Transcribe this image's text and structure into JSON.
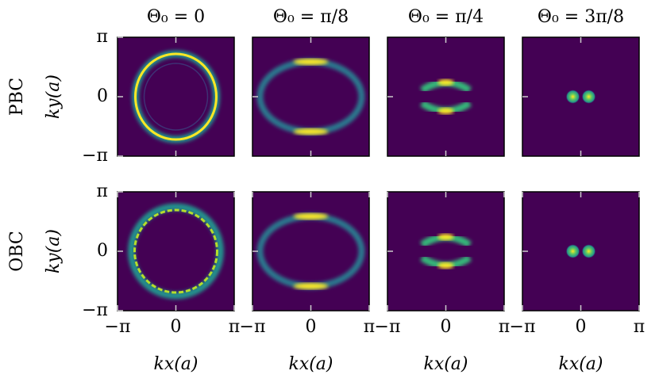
{
  "chart_data": [
    {
      "type": "heatmap",
      "title": "Θ₀ = 0",
      "row_label": "PBC",
      "ylabel": "ky(a)",
      "xlim": [
        -3.1416,
        3.1416
      ],
      "ylim": [
        -3.1416,
        3.1416
      ],
      "xticks": [
        0
      ],
      "yticks": [
        {
          "value": -3.1416,
          "label": "−π"
        },
        {
          "value": 0,
          "label": "0"
        },
        {
          "value": 3.1416,
          "label": "π"
        }
      ]
    },
    {
      "type": "heatmap",
      "title": "Θ₀ = π/8",
      "xlim": [
        -3.1416,
        3.1416
      ],
      "ylim": [
        -3.1416,
        3.1416
      ],
      "xticks": [
        0
      ],
      "yticks": [
        0
      ]
    },
    {
      "type": "heatmap",
      "title": "Θ₀ = π/4",
      "xlim": [
        -3.1416,
        3.1416
      ],
      "ylim": [
        -3.1416,
        3.1416
      ],
      "xticks": [
        0
      ],
      "yticks": [
        0
      ]
    },
    {
      "type": "heatmap",
      "title": "Θ₀ = 3π/8",
      "xlim": [
        -3.1416,
        3.1416
      ],
      "ylim": [
        -3.1416,
        3.1416
      ],
      "xticks": [
        0
      ],
      "yticks": [
        0
      ]
    },
    {
      "type": "heatmap",
      "row_label": "OBC",
      "ylabel": "ky(a)",
      "xlabel": "kx(a)",
      "xlim": [
        -3.1416,
        3.1416
      ],
      "ylim": [
        -3.1416,
        3.1416
      ],
      "xticks": [
        {
          "value": -3.1416,
          "label": "−π"
        },
        {
          "value": 0,
          "label": "0"
        },
        {
          "value": 3.1416,
          "label": "π"
        }
      ],
      "yticks": [
        {
          "value": -3.1416,
          "label": "−π"
        },
        {
          "value": 0,
          "label": "0"
        },
        {
          "value": 3.1416,
          "label": "π"
        }
      ]
    },
    {
      "type": "heatmap",
      "xlabel": "kx(a)",
      "xlim": [
        -3.1416,
        3.1416
      ],
      "ylim": [
        -3.1416,
        3.1416
      ],
      "xticks": [
        {
          "value": -3.1416,
          "label": "−π"
        },
        {
          "value": 0,
          "label": "0"
        },
        {
          "value": 3.1416,
          "label": "π"
        }
      ],
      "yticks": [
        0
      ]
    },
    {
      "type": "heatmap",
      "xlabel": "kx(a)",
      "xlim": [
        -3.1416,
        3.1416
      ],
      "ylim": [
        -3.1416,
        3.1416
      ],
      "xticks": [
        {
          "value": -3.1416,
          "label": "−π"
        },
        {
          "value": 0,
          "label": "0"
        },
        {
          "value": 3.1416,
          "label": "π"
        }
      ],
      "yticks": [
        0
      ]
    },
    {
      "type": "heatmap",
      "xlabel": "kx(a)",
      "xlim": [
        -3.1416,
        3.1416
      ],
      "ylim": [
        -3.1416,
        3.1416
      ],
      "xticks": [
        {
          "value": -3.1416,
          "label": "−π"
        },
        {
          "value": 0,
          "label": "0"
        },
        {
          "value": 3.1416,
          "label": "π"
        }
      ],
      "yticks": [
        0
      ]
    }
  ]
}
